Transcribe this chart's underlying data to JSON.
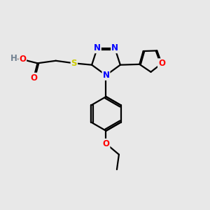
{
  "bg_color": "#e8e8e8",
  "bond_color": "#000000",
  "bond_width": 1.6,
  "atom_colors": {
    "N": "#0000ff",
    "O": "#ff0000",
    "S": "#cccc00",
    "C": "#000000",
    "H": "#708090"
  },
  "font_size": 8.5
}
